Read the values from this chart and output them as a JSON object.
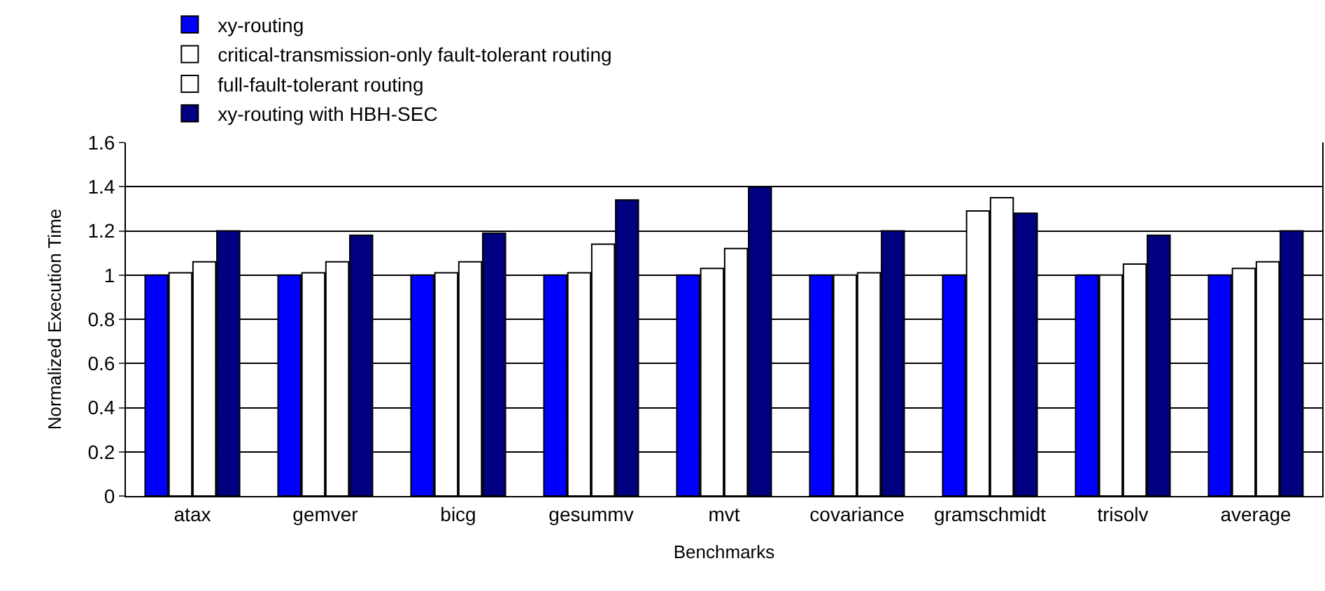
{
  "chart_data": {
    "type": "bar",
    "xlabel": "Benchmarks",
    "ylabel": "Normalized Execution Time",
    "categories": [
      "atax",
      "gemver",
      "bicg",
      "gesummv",
      "mvt",
      "covariance",
      "gramschmidt",
      "trisolv",
      "average"
    ],
    "series": [
      {
        "name": "xy-routing",
        "color": "#0000ff",
        "values": [
          1,
          1,
          1,
          1,
          1,
          1,
          1,
          1,
          1
        ]
      },
      {
        "name": "critical-transmission-only fault-tolerant routing",
        "color": "#ffffff",
        "values": [
          1.01,
          1.01,
          1.01,
          1.01,
          1.03,
          1.0,
          1.29,
          1.0,
          1.03
        ]
      },
      {
        "name": "full-fault-tolerant routing",
        "color": "#ffffff",
        "values": [
          1.06,
          1.06,
          1.06,
          1.14,
          1.12,
          1.01,
          1.35,
          1.05,
          1.06
        ]
      },
      {
        "name": "xy-routing with HBH-SEC",
        "color": "#000080",
        "values": [
          1.2,
          1.18,
          1.19,
          1.34,
          1.4,
          1.2,
          1.28,
          1.18,
          1.2
        ]
      }
    ],
    "ylim": [
      0,
      1.6
    ],
    "yticks": [
      0,
      0.2,
      0.4,
      0.6,
      0.8,
      1,
      1.2,
      1.4,
      1.6
    ],
    "grid": "y",
    "legend": "top left"
  }
}
